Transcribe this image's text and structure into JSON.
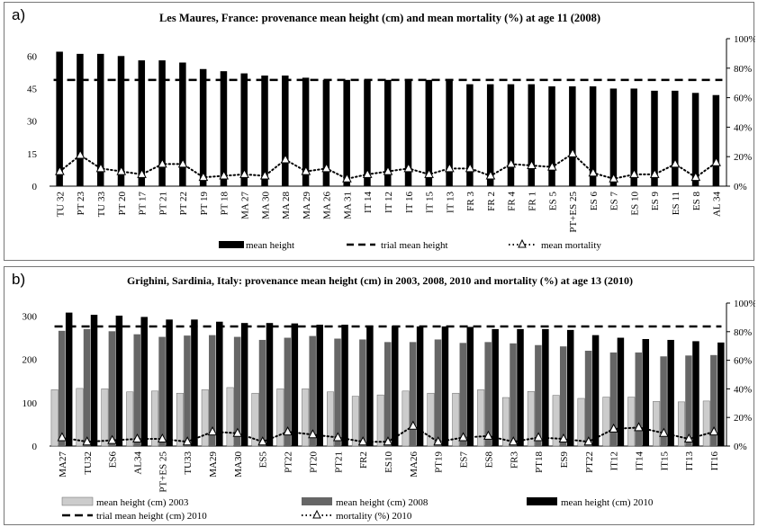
{
  "chart_data": [
    {
      "panel_label": "a)",
      "type": "bar",
      "title": "Les Maures, France: provenance mean height (cm) and mean mortality (%) at age 11 (2008)",
      "categories": [
        "TU 32",
        "PT 23",
        "TU 33",
        "PT 20",
        "PT 17",
        "PT 21",
        "PT 22",
        "PT 19",
        "PT 18",
        "MA 27",
        "MA 30",
        "MA 28",
        "MA 29",
        "MA 26",
        "MA 31",
        "IT 14",
        "IT 12",
        "IT 16",
        "IT 15",
        "IT 13",
        "FR 3",
        "FR 2",
        "FR 4",
        "FR 1",
        "ES 5",
        "PT+ES 25",
        "ES 6",
        "ES 7",
        "ES 10",
        "ES 9",
        "ES 11",
        "ES 8",
        "AL 34"
      ],
      "series": [
        {
          "name": "mean height",
          "kind": "bar",
          "color": "#000000",
          "values": [
            62,
            61,
            61,
            60,
            58,
            58,
            57,
            54,
            53,
            52,
            51,
            51,
            50,
            49,
            49,
            49,
            49,
            49,
            49,
            49,
            47,
            47,
            47,
            47,
            46,
            46,
            46,
            45,
            45,
            44,
            44,
            43,
            42
          ]
        },
        {
          "name": "trial mean height",
          "kind": "line",
          "style": "dashed",
          "values_const": 49
        },
        {
          "name": "mean mortality",
          "kind": "line",
          "style": "dotted",
          "marker": "triangle",
          "axis": "right",
          "values": [
            10,
            21,
            12,
            10,
            8,
            15,
            15,
            6,
            7,
            8,
            7,
            18,
            10,
            12,
            5,
            8,
            10,
            12,
            8,
            12,
            12,
            7,
            15,
            14,
            13,
            22,
            9,
            5,
            8,
            8,
            15,
            6,
            16
          ]
        }
      ],
      "y_left": {
        "ticks": [
          "0",
          "15",
          "30",
          "45",
          "60"
        ],
        "ylim": [
          0,
          68
        ]
      },
      "y_right": {
        "ticks": [
          "0%",
          "20%",
          "40%",
          "60%",
          "80%",
          "100%"
        ],
        "ylim": [
          0,
          100
        ]
      },
      "legend": [
        "mean height",
        "trial mean height",
        "mean mortality"
      ],
      "legend_position": "bottom"
    },
    {
      "panel_label": "b)",
      "type": "bar",
      "title": "Grighini, Sardinia, Italy: provenance mean height (cm) in 2003, 2008, 2010 and mortality (%) at age 13 (2010)",
      "categories": [
        "MA27",
        "TU32",
        "ES6",
        "AL34",
        "PT+ES 25",
        "TU33",
        "MA29",
        "MA30",
        "ES5",
        "PT22",
        "PT20",
        "PT21",
        "FR2",
        "ES10",
        "MA26",
        "PT19",
        "ES7",
        "ES8",
        "FR3",
        "PT18",
        "ES9",
        "PT22",
        "IT12",
        "IT14",
        "IT15",
        "IT13",
        "IT16"
      ],
      "series": [
        {
          "name": "mean height (cm) 2003",
          "kind": "bar",
          "color": "#cccccc",
          "values": [
            130,
            133,
            132,
            125,
            127,
            122,
            130,
            135,
            122,
            132,
            132,
            125,
            115,
            118,
            127,
            122,
            122,
            130,
            112,
            126,
            117,
            110,
            113,
            113,
            103,
            102,
            104
          ]
        },
        {
          "name": "mean height (cm) 2008",
          "kind": "bar",
          "color": "#666666",
          "values": [
            266,
            270,
            265,
            258,
            252,
            255,
            256,
            252,
            245,
            250,
            254,
            248,
            246,
            240,
            240,
            246,
            238,
            240,
            237,
            233,
            230,
            220,
            216,
            216,
            207,
            209,
            210
          ]
        },
        {
          "name": "mean height (cm) 2010",
          "kind": "bar",
          "color": "#000000",
          "values": [
            308,
            303,
            301,
            298,
            292,
            292,
            287,
            284,
            284,
            283,
            280,
            280,
            278,
            277,
            276,
            276,
            275,
            270,
            270,
            270,
            268,
            256,
            250,
            247,
            245,
            242,
            239
          ]
        },
        {
          "name": "trial mean height (cm) 2010",
          "kind": "line",
          "style": "dashed",
          "values_const": 276
        },
        {
          "name": "mortality (%) 2010",
          "kind": "line",
          "style": "dotted",
          "marker": "triangle",
          "axis": "right",
          "values": [
            6,
            3,
            4,
            5,
            5,
            3,
            10,
            9,
            3,
            10,
            8,
            6,
            3,
            3,
            14,
            3,
            6,
            7,
            3,
            6,
            5,
            3,
            12,
            13,
            9,
            5,
            10
          ]
        }
      ],
      "y_left": {
        "ticks": [
          "0",
          "100",
          "200",
          "300"
        ],
        "ylim": [
          0,
          330
        ]
      },
      "y_right": {
        "ticks": [
          "0%",
          "20%",
          "40%",
          "60%",
          "80%",
          "100%"
        ],
        "ylim": [
          0,
          100
        ]
      },
      "legend": [
        "mean height (cm) 2003",
        "mean height (cm) 2008",
        "mean height (cm) 2010",
        "trial mean height (cm) 2010",
        "mortality (%) 2010"
      ],
      "legend_position": "bottom"
    }
  ]
}
